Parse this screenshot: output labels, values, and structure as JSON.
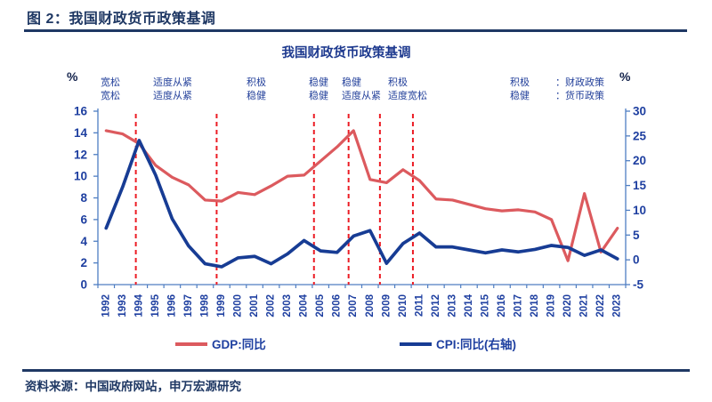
{
  "header": {
    "title": "图 2：我国财政货币政策基调"
  },
  "chart_data": {
    "type": "line",
    "title": "我国财政货币政策基调",
    "categories": [
      "1992",
      "1993",
      "1994",
      "1995",
      "1996",
      "1997",
      "1998",
      "1999",
      "2000",
      "2001",
      "2002",
      "2003",
      "2004",
      "2005",
      "2006",
      "2007",
      "2008",
      "2009",
      "2010",
      "2011",
      "2012",
      "2013",
      "2014",
      "2015",
      "2016",
      "2017",
      "2018",
      "2019",
      "2020",
      "2021",
      "2022",
      "2023"
    ],
    "series": [
      {
        "name": "GDP:同比",
        "axis": "left",
        "color": "#dc5a5e",
        "values": [
          14.2,
          13.9,
          13.0,
          11.0,
          9.9,
          9.2,
          7.8,
          7.7,
          8.5,
          8.3,
          9.1,
          10.0,
          10.1,
          11.4,
          12.7,
          14.2,
          9.7,
          9.4,
          10.6,
          9.6,
          7.9,
          7.8,
          7.4,
          7.0,
          6.8,
          6.9,
          6.7,
          6.0,
          2.2,
          8.4,
          3.0,
          5.2
        ]
      },
      {
        "name": "CPI:同比(右轴)",
        "axis": "right",
        "color": "#173c94",
        "values": [
          6.4,
          14.7,
          24.1,
          17.1,
          8.3,
          2.8,
          -0.8,
          -1.4,
          0.4,
          0.7,
          -0.8,
          1.2,
          3.9,
          1.8,
          1.5,
          4.8,
          5.9,
          -0.7,
          3.3,
          5.4,
          2.6,
          2.6,
          2.0,
          1.4,
          2.0,
          1.6,
          2.1,
          2.9,
          2.5,
          0.9,
          2.0,
          0.2
        ]
      }
    ],
    "left_axis": {
      "unit": "%",
      "min": 0,
      "max": 16,
      "ticks": [
        0,
        2,
        4,
        6,
        8,
        10,
        12,
        14,
        16
      ]
    },
    "right_axis": {
      "unit": "%",
      "min": -5,
      "max": 30,
      "ticks": [
        -5,
        0,
        5,
        10,
        15,
        20,
        25,
        30
      ]
    },
    "grid": false,
    "legend_position": "bottom",
    "policy_dividers_color": "#ec1c24",
    "policy_dividers_year": [
      1993.8,
      1998.7,
      2004.6,
      2006.7,
      2008.6,
      2010.6
    ],
    "annotations": [
      {
        "fiscal": "宽松",
        "monetary": "宽松"
      },
      {
        "fiscal": "适度从紧",
        "monetary": "适度从紧"
      },
      {
        "fiscal": "积极",
        "monetary": "稳健"
      },
      {
        "fiscal": "稳健",
        "monetary": "稳健"
      },
      {
        "fiscal": "稳健",
        "monetary": "适度从紧"
      },
      {
        "fiscal": "积极",
        "monetary": "适度宽松"
      }
    ]
  },
  "policy_key": {
    "rows": [
      {
        "term": "积极",
        "sep": "：",
        "label": "财政政策"
      },
      {
        "term": "稳健",
        "sep": "：",
        "label": "货币政策"
      }
    ]
  },
  "footer": {
    "source": "资料来源：中国政府网站，申万宏源研究"
  }
}
